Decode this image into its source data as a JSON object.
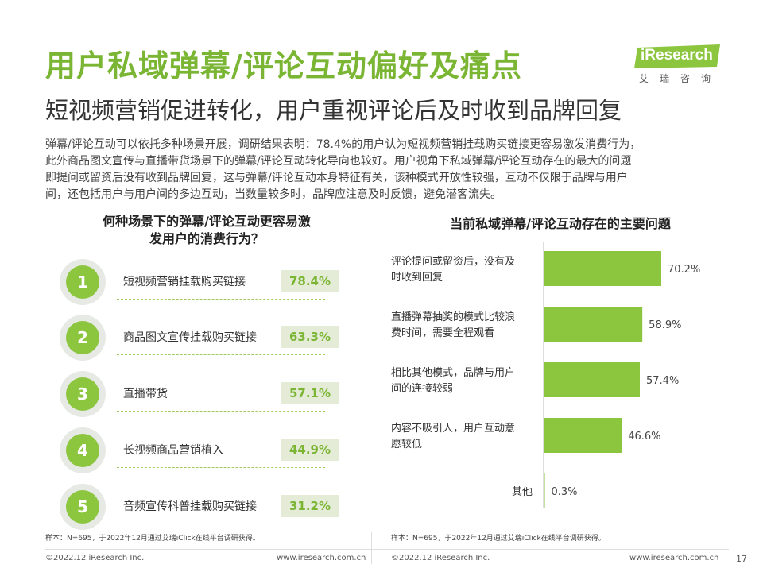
{
  "header": {
    "title": "用户私域弹幕/评论互动偏好及痛点",
    "subtitle": "短视频营销促进转化，用户重视评论后及时收到品牌回复",
    "logo": {
      "text": "iResearch",
      "sub": "艾瑞咨询",
      "color": "#7ab533"
    }
  },
  "intro": [
    "弹幕/评论互动可以依托多种场景开展，调研结果表明：78.4%的用户认为短视频营销挂载购买链接更容易激发消费行为，",
    "此外商品图文宣传与直播带货场景下的弹幕/评论互动转化导向也较好。用户视角下私域弹幕/评论互动存在的最大的问题",
    "即提问或留资后没有收到品牌回复，这与弹幕/评论互动本身特征有关，该种模式开放性较强，互动不仅限于品牌与用户",
    "间，还包括用户与用户间的多边互动，当数量较多时，品牌应注意及时反馈，避免潜客流失。"
  ],
  "left_panel": {
    "title_lines": [
      "何种场景下的弹幕/评论互动更容易激",
      "发用户的消费行为？"
    ],
    "items": [
      {
        "rank": "1",
        "label": "短视频营销挂载购买链接",
        "value": "78.4%"
      },
      {
        "rank": "2",
        "label": "商品图文宣传挂载购买链接",
        "value": "63.3%"
      },
      {
        "rank": "3",
        "label": "直播带货",
        "value": "57.1%"
      },
      {
        "rank": "4",
        "label": "长视频商品营销植入",
        "value": "44.9%"
      },
      {
        "rank": "5",
        "label": "音频宣传科普挂载购买链接",
        "value": "31.2%"
      }
    ],
    "note": "样本：N=695，于2022年12月通过艾瑞iClick在线平台调研获得。"
  },
  "chart_data": {
    "type": "bar",
    "orientation": "horizontal",
    "title": "当前私域弹幕/评论互动存在的主要问题",
    "categories": [
      [
        "评论提问或留资后，没有及",
        "时收到回复"
      ],
      [
        "直播弹幕抽奖的模式比较浪",
        "费时间，需要全程观看"
      ],
      [
        "相比其他模式，品牌与用户",
        "间的连接较弱"
      ],
      [
        "内容不吸引人，用户互动意",
        "愿较低"
      ],
      [
        "其他"
      ]
    ],
    "values": [
      70.2,
      58.9,
      57.4,
      46.6,
      0.3
    ],
    "value_labels": [
      "70.2%",
      "58.9%",
      "57.4%",
      "46.6%",
      "0.3%"
    ],
    "xlim": [
      0,
      100
    ],
    "bar_color": "#8cc63f",
    "grid": false,
    "note": "样本：N=695，于2022年12月通过艾瑞iClick在线平台调研获得。"
  },
  "footer": {
    "copyright": "©2022.12 iResearch Inc.",
    "url": "www.iresearch.com.cn",
    "page": "17"
  }
}
